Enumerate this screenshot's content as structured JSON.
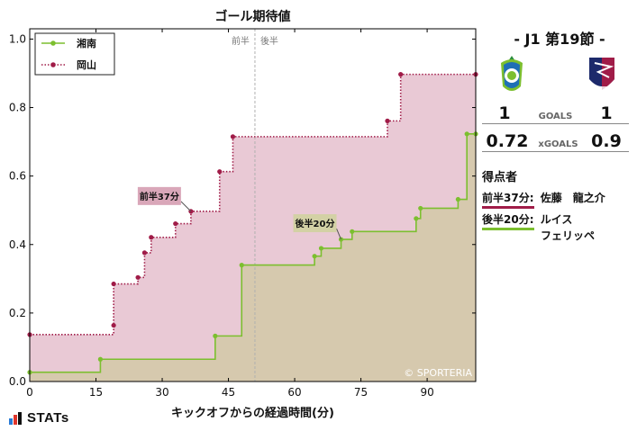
{
  "chart_data": {
    "type": "line",
    "step": true,
    "title": "ゴール期待値",
    "xlabel": "キックオフからの経過時間(分)",
    "xlim": [
      0,
      101
    ],
    "ylim": [
      0,
      1.03
    ],
    "xticks": [
      0,
      15,
      30,
      45,
      60,
      75,
      90
    ],
    "yticks": [
      0.0,
      0.2,
      0.4,
      0.6,
      0.8,
      1.0
    ],
    "half_time": 51,
    "half_labels": [
      "前半",
      "後半"
    ],
    "legend_position": "top-left",
    "series": [
      {
        "name": "湘南",
        "color": "#7cbf2f",
        "fill": "#d6c9ae",
        "line_style": "solid",
        "points": [
          [
            0,
            0.027
          ],
          [
            16,
            0.065
          ],
          [
            42,
            0.133
          ],
          [
            48,
            0.34
          ],
          [
            64.5,
            0.366
          ],
          [
            66,
            0.389
          ],
          [
            70.5,
            0.415
          ],
          [
            73,
            0.438
          ],
          [
            87.5,
            0.476
          ],
          [
            88.5,
            0.506
          ],
          [
            97,
            0.532
          ],
          [
            99,
            0.723
          ],
          [
            101,
            0.723
          ]
        ]
      },
      {
        "name": "岡山",
        "color": "#a01c48",
        "fill": "#e9c9d5",
        "line_style": "dotted",
        "points": [
          [
            0,
            0.137
          ],
          [
            19,
            0.164
          ],
          [
            19,
            0.285
          ],
          [
            24.5,
            0.304
          ],
          [
            26,
            0.376
          ],
          [
            27.5,
            0.421
          ],
          [
            33,
            0.461
          ],
          [
            36.5,
            0.497
          ],
          [
            43,
            0.613
          ],
          [
            46,
            0.715
          ],
          [
            81,
            0.761
          ],
          [
            84,
            0.897
          ],
          [
            101,
            0.897
          ]
        ]
      }
    ],
    "annotations": [
      {
        "text": "前半37分",
        "team": "岡山",
        "x": 36.5,
        "y": 0.497
      },
      {
        "text": "後半20分",
        "team": "湘南",
        "x": 70.5,
        "y": 0.415
      }
    ],
    "watermark": "© SPORTERIA"
  },
  "panel": {
    "match_title": "-  J1 第19節  -",
    "home_team": "湘南",
    "away_team": "岡山",
    "home_goals": "1",
    "away_goals": "1",
    "goals_label": "GOALS",
    "home_xg": "0.72",
    "away_xg": "0.9",
    "xg_label": "xGOALS",
    "scorers_title": "得点者",
    "scorers": [
      {
        "time": "前半37分:",
        "name": "佐藤　龍之介",
        "team": "岡山"
      },
      {
        "time": "後半20分:",
        "name": "ルイス",
        "name_line2": "フェリッペ",
        "team": "湘南"
      }
    ]
  },
  "brand": "STATs",
  "colors": {
    "home": "#7cbf2f",
    "away": "#a01c48",
    "home_fill": "#d6c9ae",
    "away_fill": "#e9c9d5"
  }
}
